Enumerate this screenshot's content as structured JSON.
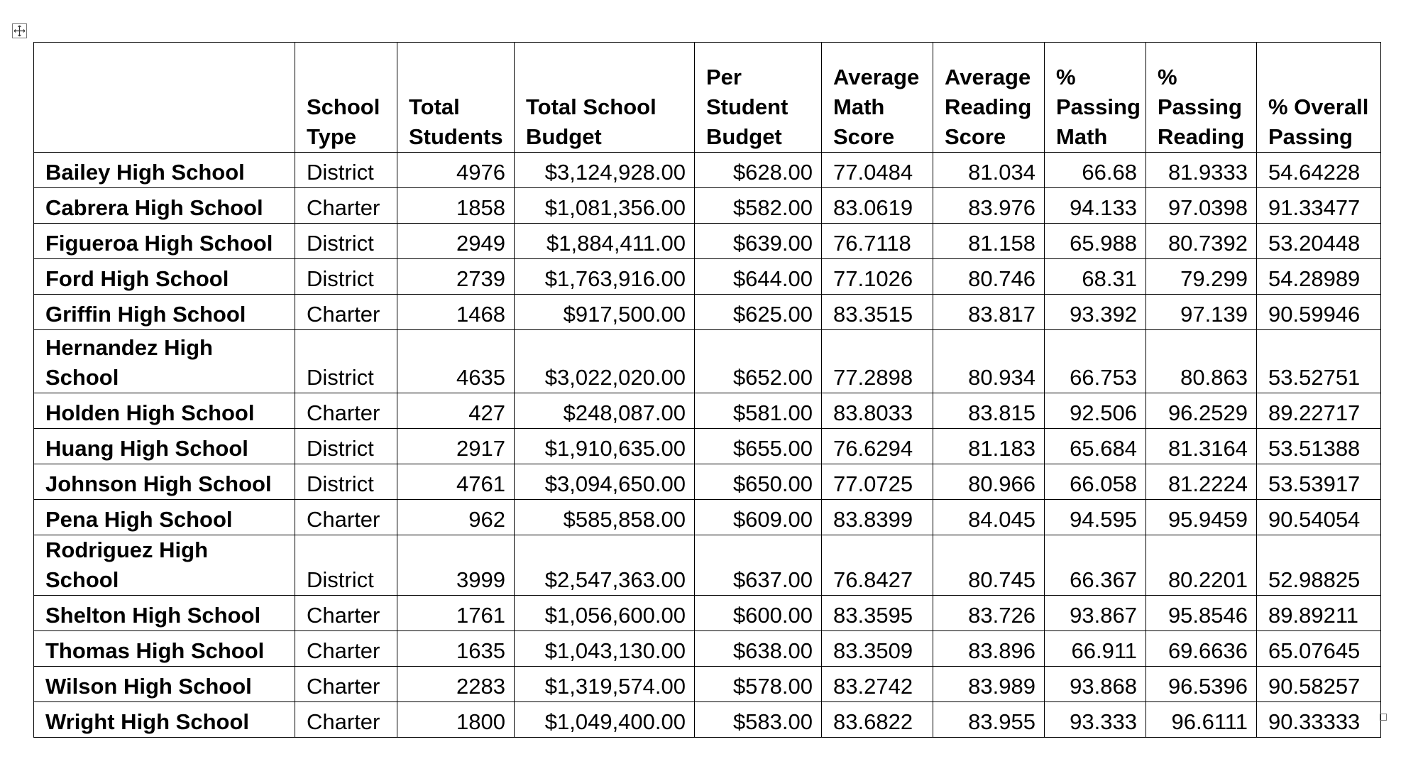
{
  "table": {
    "header": [
      "",
      "School Type",
      "Total Students",
      "Total School Budget",
      "Per Student Budget",
      "Average Math Score",
      "Average Reading Score",
      "% Passing Math",
      "% Passing Reading",
      "% Overall Passing"
    ],
    "rows": [
      [
        "Bailey High School",
        "District",
        "4976",
        "$3,124,928.00",
        "$628.00",
        "77.0484",
        "81.034",
        "66.68",
        "81.9333",
        "54.64228"
      ],
      [
        "Cabrera High School",
        "Charter",
        "1858",
        "$1,081,356.00",
        "$582.00",
        "83.0619",
        "83.976",
        "94.133",
        "97.0398",
        "91.33477"
      ],
      [
        "Figueroa High School",
        "District",
        "2949",
        "$1,884,411.00",
        "$639.00",
        "76.7118",
        "81.158",
        "65.988",
        "80.7392",
        "53.20448"
      ],
      [
        "Ford High School",
        "District",
        "2739",
        "$1,763,916.00",
        "$644.00",
        "77.1026",
        "80.746",
        "68.31",
        "79.299",
        "54.28989"
      ],
      [
        "Griffin High School",
        "Charter",
        "1468",
        "$917,500.00",
        "$625.00",
        "83.3515",
        "83.817",
        "93.392",
        "97.139",
        "90.59946"
      ],
      [
        "Hernandez High School",
        "District",
        "4635",
        "$3,022,020.00",
        "$652.00",
        "77.2898",
        "80.934",
        "66.753",
        "80.863",
        "53.52751"
      ],
      [
        "Holden High School",
        "Charter",
        "427",
        "$248,087.00",
        "$581.00",
        "83.8033",
        "83.815",
        "92.506",
        "96.2529",
        "89.22717"
      ],
      [
        "Huang High School",
        "District",
        "2917",
        "$1,910,635.00",
        "$655.00",
        "76.6294",
        "81.183",
        "65.684",
        "81.3164",
        "53.51388"
      ],
      [
        "Johnson High School",
        "District",
        "4761",
        "$3,094,650.00",
        "$650.00",
        "77.0725",
        "80.966",
        "66.058",
        "81.2224",
        "53.53917"
      ],
      [
        "Pena High School",
        "Charter",
        "962",
        "$585,858.00",
        "$609.00",
        "83.8399",
        "84.045",
        "94.595",
        "95.9459",
        "90.54054"
      ],
      [
        "Rodriguez High School",
        "District",
        "3999",
        "$2,547,363.00",
        "$637.00",
        "76.8427",
        "80.745",
        "66.367",
        "80.2201",
        "52.98825"
      ],
      [
        "Shelton High School",
        "Charter",
        "1761",
        "$1,056,600.00",
        "$600.00",
        "83.3595",
        "83.726",
        "93.867",
        "95.8546",
        "89.89211"
      ],
      [
        "Thomas High School",
        "Charter",
        "1635",
        "$1,043,130.00",
        "$638.00",
        "83.3509",
        "83.896",
        "66.911",
        "69.6636",
        "65.07645"
      ],
      [
        "Wilson High School",
        "Charter",
        "2283",
        "$1,319,574.00",
        "$578.00",
        "83.2742",
        "83.989",
        "93.868",
        "96.5396",
        "90.58257"
      ],
      [
        "Wright High School",
        "Charter",
        "1800",
        "$1,049,400.00",
        "$583.00",
        "83.6822",
        "83.955",
        "93.333",
        "96.6111",
        "90.33333"
      ]
    ]
  }
}
